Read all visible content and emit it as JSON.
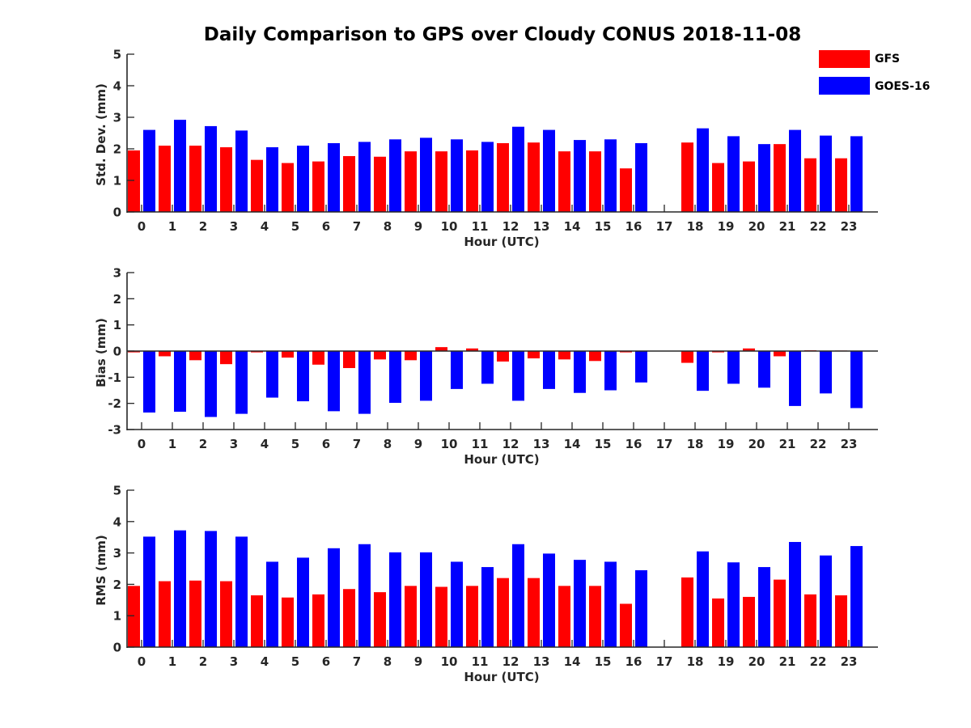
{
  "title": "Daily Comparison to GPS over Cloudy CONUS 2018-11-08",
  "colors": {
    "GFS": "#ff0000",
    "GOES-16": "#0000ff",
    "axis": "#262626"
  },
  "legend": [
    {
      "name": "GFS",
      "color": "#ff0000"
    },
    {
      "name": "GOES-16",
      "color": "#0000ff"
    }
  ],
  "chart_data": [
    {
      "type": "bar",
      "xlabel": "Hour (UTC)",
      "ylabel": "Std. Dev. (mm)",
      "ylim": [
        0,
        5
      ],
      "yticks": [
        "0",
        "1",
        "2",
        "3",
        "4",
        "5"
      ],
      "categories": [
        "0",
        "1",
        "2",
        "3",
        "4",
        "5",
        "6",
        "7",
        "8",
        "9",
        "10",
        "11",
        "12",
        "13",
        "14",
        "15",
        "16",
        "17",
        "18",
        "19",
        "20",
        "21",
        "22",
        "23"
      ],
      "series": [
        {
          "name": "GFS",
          "values": [
            1.95,
            2.1,
            2.1,
            2.05,
            1.65,
            1.55,
            1.6,
            1.77,
            1.75,
            1.92,
            1.92,
            1.95,
            2.18,
            2.2,
            1.92,
            1.92,
            1.38,
            null,
            2.2,
            1.55,
            1.6,
            2.15,
            1.7,
            1.7
          ]
        },
        {
          "name": "GOES-16",
          "values": [
            2.6,
            2.92,
            2.72,
            2.58,
            2.05,
            2.1,
            2.18,
            2.22,
            2.3,
            2.35,
            2.3,
            2.22,
            2.7,
            2.6,
            2.28,
            2.3,
            2.18,
            null,
            2.65,
            2.4,
            2.15,
            2.6,
            2.42,
            2.4
          ]
        }
      ]
    },
    {
      "type": "bar",
      "xlabel": "Hour (UTC)",
      "ylabel": "Bias (mm)",
      "ylim": [
        -3,
        3
      ],
      "yticks": [
        "-3",
        "-2",
        "-1",
        "0",
        "1",
        "2",
        "3"
      ],
      "categories": [
        "0",
        "1",
        "2",
        "3",
        "4",
        "5",
        "6",
        "7",
        "8",
        "9",
        "10",
        "11",
        "12",
        "13",
        "14",
        "15",
        "16",
        "17",
        "18",
        "19",
        "20",
        "21",
        "22",
        "23"
      ],
      "series": [
        {
          "name": "GFS",
          "values": [
            -0.05,
            -0.2,
            -0.35,
            -0.5,
            -0.05,
            -0.25,
            -0.52,
            -0.65,
            -0.32,
            -0.35,
            0.15,
            0.1,
            -0.4,
            -0.28,
            -0.32,
            -0.38,
            -0.05,
            null,
            -0.45,
            -0.05,
            0.1,
            -0.2,
            0.03,
            0.02
          ]
        },
        {
          "name": "GOES-16",
          "values": [
            -2.35,
            -2.32,
            -2.52,
            -2.4,
            -1.78,
            -1.92,
            -2.3,
            -2.4,
            -1.98,
            -1.9,
            -1.45,
            -1.25,
            -1.9,
            -1.45,
            -1.6,
            -1.5,
            -1.2,
            null,
            -1.52,
            -1.25,
            -1.4,
            -2.1,
            -1.62,
            -2.18
          ]
        }
      ]
    },
    {
      "type": "bar",
      "xlabel": "Hour (UTC)",
      "ylabel": "RMS (mm)",
      "ylim": [
        0,
        5
      ],
      "yticks": [
        "0",
        "1",
        "2",
        "3",
        "4",
        "5"
      ],
      "categories": [
        "0",
        "1",
        "2",
        "3",
        "4",
        "5",
        "6",
        "7",
        "8",
        "9",
        "10",
        "11",
        "12",
        "13",
        "14",
        "15",
        "16",
        "17",
        "18",
        "19",
        "20",
        "21",
        "22",
        "23"
      ],
      "series": [
        {
          "name": "GFS",
          "values": [
            1.95,
            2.1,
            2.12,
            2.1,
            1.65,
            1.58,
            1.68,
            1.85,
            1.75,
            1.95,
            1.92,
            1.95,
            2.2,
            2.2,
            1.95,
            1.95,
            1.38,
            null,
            2.22,
            1.55,
            1.6,
            2.15,
            1.68,
            1.65
          ]
        },
        {
          "name": "GOES-16",
          "values": [
            3.52,
            3.72,
            3.7,
            3.52,
            2.72,
            2.85,
            3.15,
            3.28,
            3.02,
            3.02,
            2.72,
            2.55,
            3.28,
            2.98,
            2.78,
            2.72,
            2.45,
            null,
            3.05,
            2.7,
            2.55,
            3.35,
            2.92,
            3.22
          ]
        }
      ]
    }
  ]
}
